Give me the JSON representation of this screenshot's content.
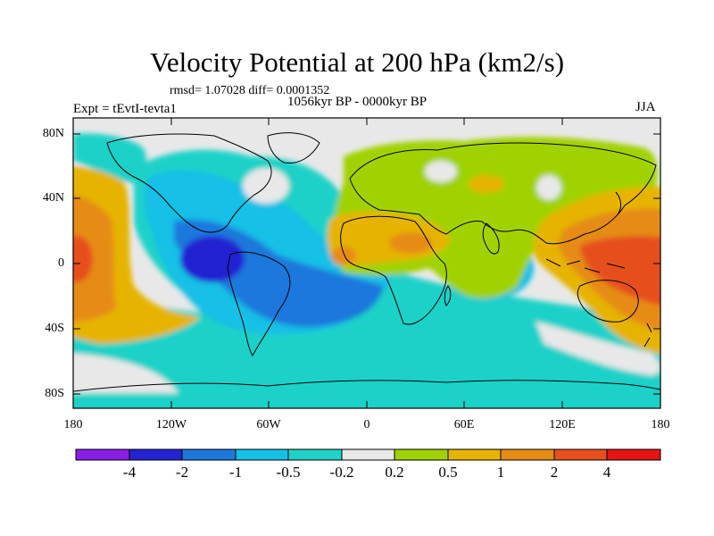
{
  "title": "Velocity Potential at 200 hPa (km2/s)",
  "rmsd_text": "rmsd= 1.07028 diff= 0.0001352",
  "period": "1056kyr BP - 0000kyr BP",
  "experiment": "Expt = tEvtI-tevta1",
  "season": "JJA",
  "y_axis_labels": [
    "80N",
    "40N",
    "0",
    "40S",
    "80S"
  ],
  "x_axis_labels": [
    "180",
    "120W",
    "60W",
    "0",
    "60E",
    "120E",
    "180"
  ],
  "colorbar": {
    "labels": [
      "-4",
      "-2",
      "-1",
      "-0.5",
      "-0.2",
      "0.2",
      "0.5",
      "1",
      "2",
      "4"
    ],
    "colors": [
      "#8a1ee6",
      "#2323d2",
      "#1e78dc",
      "#14c0e6",
      "#1ed2c8",
      "#e8e8e8",
      "#a0d200",
      "#e6b400",
      "#e68c14",
      "#e6501e",
      "#e61414"
    ]
  },
  "map_colors": {
    "neutral": "#e8e8e8",
    "teal": "#1ed2c8",
    "cyan": "#14c0e6",
    "blue": "#1e78dc",
    "deep_blue": "#2323d2",
    "yellow_green": "#a0d200",
    "orange_yellow": "#e6b400",
    "orange": "#e68c14",
    "red_orange": "#e6501e"
  }
}
